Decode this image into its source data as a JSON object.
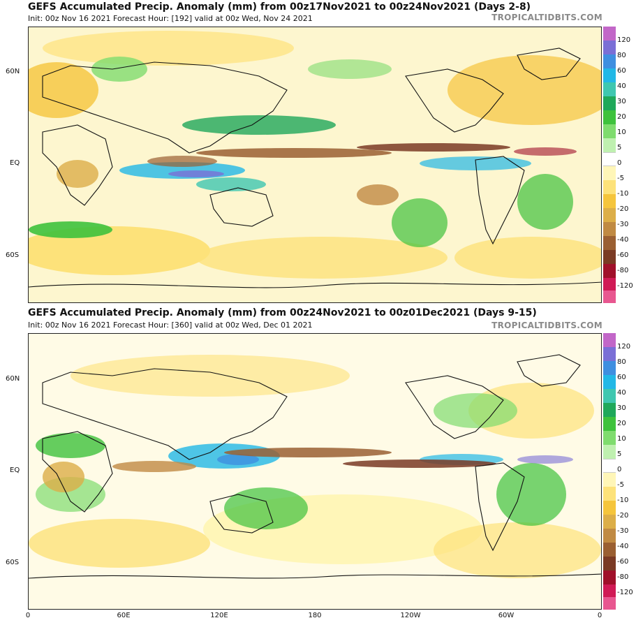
{
  "site": "TROPICALTIDBITS.COM",
  "panels": [
    {
      "title": "GEFS Accumulated Precip. Anomaly (mm) from 00z17Nov2021 to 00z24Nov2021 (Days 2-8)",
      "subtitle": "Init: 00z Nov 16 2021   Forecast Hour: [192]   valid at 00z Wed, Nov 24 2021"
    },
    {
      "title": "GEFS Accumulated Precip. Anomaly (mm) from 00z24Nov2021 to 00z01Dec2021 (Days 9-15)",
      "subtitle": "Init: 00z Nov 16 2021   Forecast Hour: [360]   valid at 00z Wed, Dec 01 2021"
    }
  ],
  "lat_labels": [
    "60N",
    "EQ",
    "60S"
  ],
  "lon_labels": [
    "0",
    "60E",
    "120E",
    "180",
    "120W",
    "60W",
    "0"
  ],
  "colorbar": {
    "labels": [
      "120",
      "80",
      "60",
      "40",
      "30",
      "20",
      "10",
      "5",
      "0",
      "-5",
      "-10",
      "-20",
      "-30",
      "-40",
      "-60",
      "-80",
      "-120"
    ],
    "colors": [
      "#c267c8",
      "#7a6fd6",
      "#3f8fe0",
      "#22b8e6",
      "#3fc7b0",
      "#1fa85a",
      "#3ec23c",
      "#7fdc6e",
      "#bff0b0",
      "#ffffff",
      "#fff6b8",
      "#fde27a",
      "#f5c53c",
      "#dcae48",
      "#c08a43",
      "#9a5f32",
      "#7a3a24",
      "#a0102a",
      "#d01a55",
      "#e85790"
    ]
  }
}
